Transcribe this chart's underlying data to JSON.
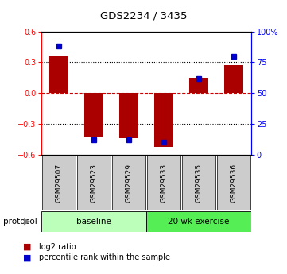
{
  "title": "GDS2234 / 3435",
  "samples": [
    "GSM29507",
    "GSM29523",
    "GSM29529",
    "GSM29533",
    "GSM29535",
    "GSM29536"
  ],
  "log2_ratio": [
    0.355,
    -0.42,
    -0.435,
    -0.525,
    0.15,
    0.27
  ],
  "percentile_rank": [
    88,
    12,
    12,
    10,
    62,
    80
  ],
  "ylim_left": [
    -0.6,
    0.6
  ],
  "ylim_right": [
    0,
    100
  ],
  "yticks_left": [
    -0.6,
    -0.3,
    0.0,
    0.3,
    0.6
  ],
  "yticks_right": [
    0,
    25,
    50,
    75,
    100
  ],
  "ytick_labels_right": [
    "0",
    "25",
    "50",
    "75",
    "100%"
  ],
  "protocol_groups": [
    {
      "label": "baseline",
      "start": 0,
      "end": 3,
      "color": "#bbffbb"
    },
    {
      "label": "20 wk exercise",
      "start": 3,
      "end": 6,
      "color": "#55ee55"
    }
  ],
  "bar_color": "#aa0000",
  "point_color": "#0000cc",
  "bar_width": 0.55,
  "zero_line_color": "#cc0000",
  "grid_color": "#000000",
  "legend_items": [
    {
      "label": "log2 ratio",
      "color": "#aa0000"
    },
    {
      "label": "percentile rank within the sample",
      "color": "#0000cc"
    }
  ],
  "protocol_label": "protocol",
  "background_color": "#ffffff",
  "sample_box_color": "#cccccc"
}
